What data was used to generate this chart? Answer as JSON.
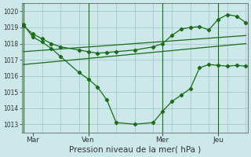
{
  "xlabel": "Pression niveau de la mer( hPa )",
  "ylim": [
    1012.5,
    1020.5
  ],
  "yticks": [
    1013,
    1014,
    1015,
    1016,
    1017,
    1018,
    1019,
    1020
  ],
  "bg_color": "#cce8e8",
  "grid_color": "#aacece",
  "line_color": "#1a6b1a",
  "xtick_labels": [
    "Mar",
    "Ven",
    "Mer",
    "Jeu"
  ],
  "xtick_positions": [
    0.5,
    3.5,
    7.5,
    10.5
  ],
  "x_vlines_minor": [
    0,
    1,
    2,
    3,
    4,
    5,
    6,
    7,
    8,
    9,
    10,
    11,
    12
  ],
  "total_points": 13,
  "xlim": [
    -0.1,
    12.1
  ],
  "data_line_x": [
    0,
    0.5,
    1,
    1.5,
    2,
    3,
    3.5,
    4,
    4.5,
    5,
    6,
    7,
    7.5,
    8,
    8.5,
    9,
    9.5,
    10,
    10.5,
    11,
    11.5,
    12
  ],
  "data_line_y": [
    1019.2,
    1018.4,
    1018.1,
    1017.7,
    1017.2,
    1016.2,
    1015.8,
    1015.3,
    1014.5,
    1013.1,
    1013.0,
    1013.1,
    1013.8,
    1014.4,
    1014.8,
    1015.2,
    1016.5,
    1016.7,
    1016.65,
    1016.6,
    1016.65,
    1016.6
  ],
  "trend_line1_x": [
    0,
    12
  ],
  "trend_line1_y": [
    1016.7,
    1018.0
  ],
  "trend_line2_x": [
    0,
    12
  ],
  "trend_line2_y": [
    1017.5,
    1018.5
  ],
  "smooth_line_x": [
    0,
    0.5,
    1,
    1.5,
    2,
    3,
    3.5,
    4,
    4.5,
    5,
    6,
    7,
    7.5,
    8,
    8.5,
    9,
    9.5,
    10,
    10.5,
    11,
    11.5,
    12
  ],
  "smooth_line_y": [
    1019.1,
    1018.6,
    1018.3,
    1018.0,
    1017.8,
    1017.6,
    1017.5,
    1017.4,
    1017.45,
    1017.5,
    1017.6,
    1017.8,
    1018.0,
    1018.5,
    1018.9,
    1019.0,
    1019.05,
    1018.85,
    1019.5,
    1019.8,
    1019.7,
    1019.3
  ],
  "ytick_fontsize": 5.5,
  "xtick_fontsize": 6.5,
  "xlabel_fontsize": 7.5
}
